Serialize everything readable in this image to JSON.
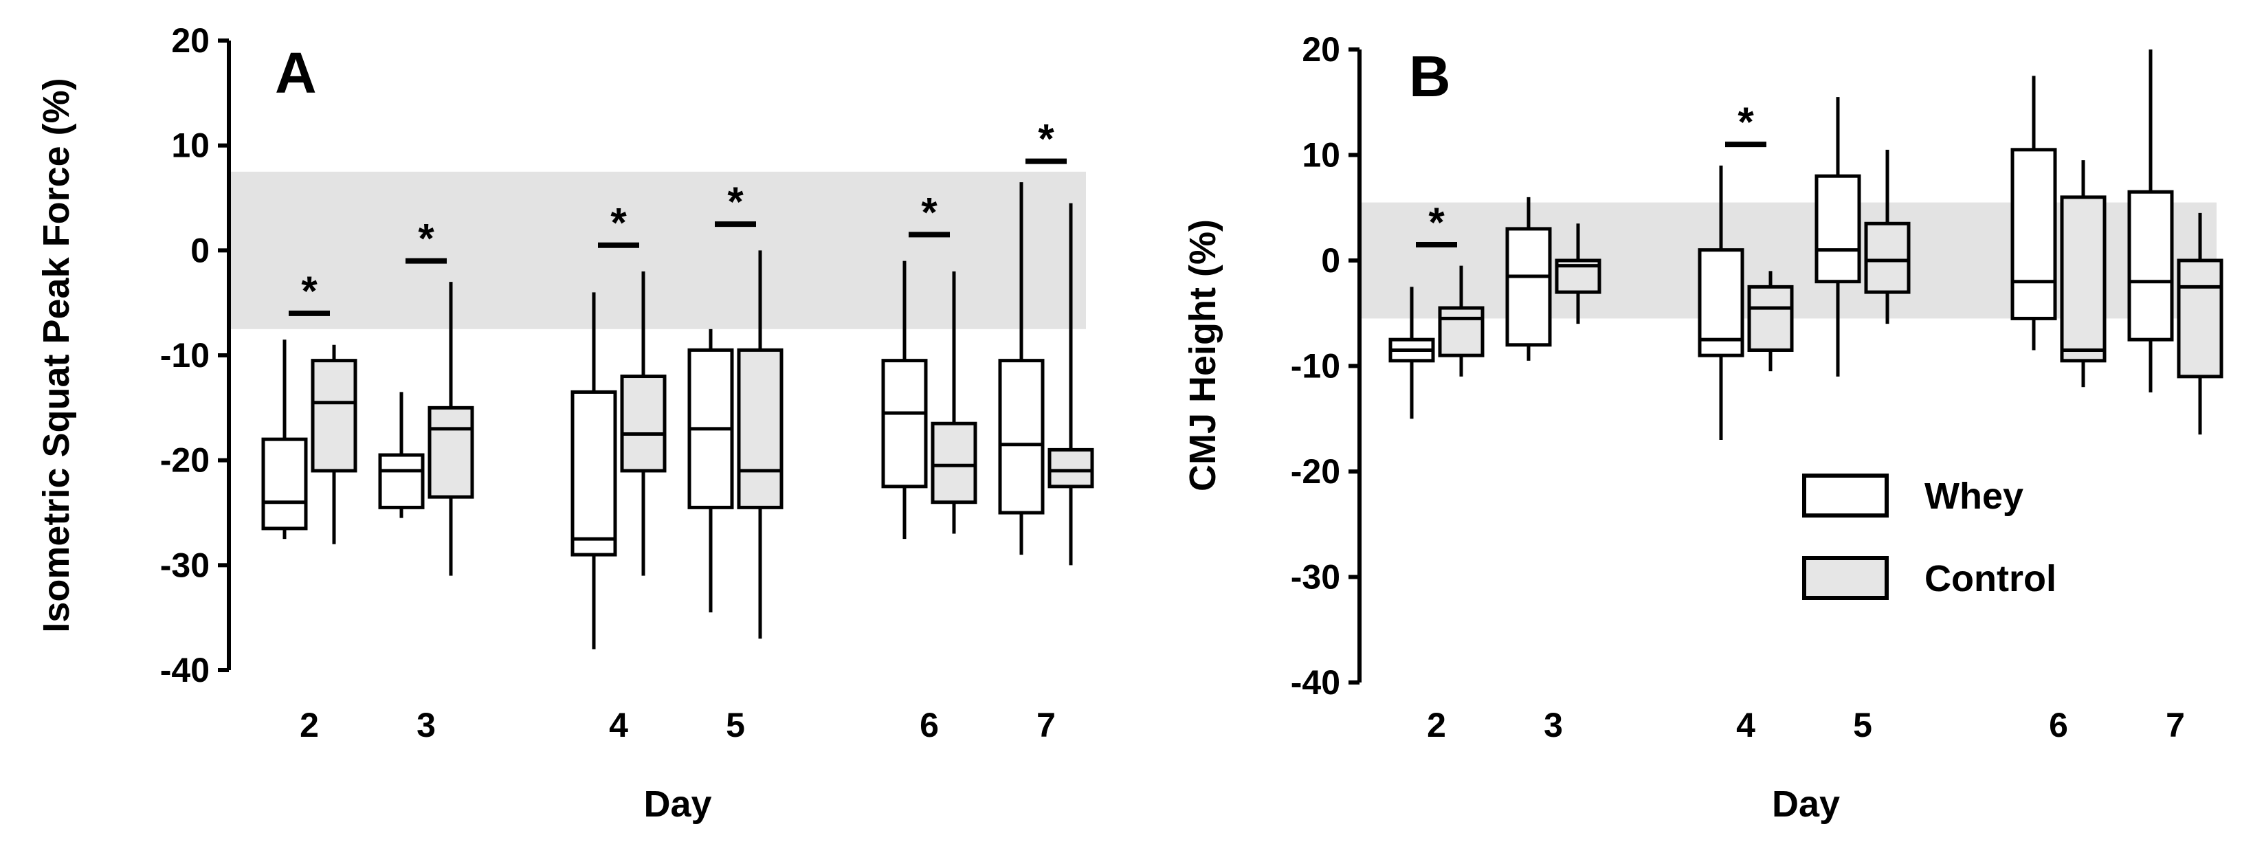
{
  "colors": {
    "whey": "#ffffff",
    "control": "#e6e6e6",
    "band": "#e3e3e3",
    "line": "#000000"
  },
  "legend": {
    "whey_label": "Whey",
    "control_label": "Control"
  },
  "chart_data": [
    {
      "type": "box",
      "panel_label": "A",
      "title": "",
      "xlabel": "Day",
      "ylabel": "Isometric Squat Peak Force  (%)",
      "ylim": [
        -40,
        20
      ],
      "yticks": [
        20,
        10,
        0,
        -10,
        -20,
        -30,
        -40
      ],
      "band": [
        -7.5,
        7.5
      ],
      "categories": [
        "2",
        "3",
        "4",
        "5",
        "6",
        "7"
      ],
      "series": [
        {
          "name": "Whey",
          "boxes": [
            {
              "min": -27.5,
              "q1": -26.5,
              "median": -24,
              "q3": -18,
              "max": -8.5
            },
            {
              "min": -25.5,
              "q1": -24.5,
              "median": -21,
              "q3": -19.5,
              "max": -13.5
            },
            {
              "min": -38,
              "q1": -29,
              "median": -27.5,
              "q3": -13.5,
              "max": -4
            },
            {
              "min": -34.5,
              "q1": -24.5,
              "median": -17,
              "q3": -9.5,
              "max": -7.5
            },
            {
              "min": -27.5,
              "q1": -22.5,
              "median": -15.5,
              "q3": -10.5,
              "max": -1
            },
            {
              "min": -29,
              "q1": -25,
              "median": -18.5,
              "q3": -10.5,
              "max": 6.5
            }
          ]
        },
        {
          "name": "Control",
          "boxes": [
            {
              "min": -28,
              "q1": -21,
              "median": -14.5,
              "q3": -10.5,
              "max": -9
            },
            {
              "min": -31,
              "q1": -23.5,
              "median": -17,
              "q3": -15,
              "max": -3
            },
            {
              "min": -31,
              "q1": -21,
              "median": -17.5,
              "q3": -12,
              "max": -2
            },
            {
              "min": -37,
              "q1": -24.5,
              "median": -21,
              "q3": -9.5,
              "max": 0
            },
            {
              "min": -27,
              "q1": -24,
              "median": -20.5,
              "q3": -16.5,
              "max": -2
            },
            {
              "min": -30,
              "q1": -22.5,
              "median": -21,
              "q3": -19,
              "max": 4.5
            }
          ]
        }
      ],
      "significance": [
        {
          "category": "2",
          "y": -6,
          "label": "*"
        },
        {
          "category": "3",
          "y": -1,
          "label": "*"
        },
        {
          "category": "4",
          "y": 0.5,
          "label": "*"
        },
        {
          "category": "5",
          "y": 2.5,
          "label": "*"
        },
        {
          "category": "6",
          "y": 1.5,
          "label": "*"
        },
        {
          "category": "7",
          "y": 8.5,
          "label": "*"
        }
      ]
    },
    {
      "type": "box",
      "panel_label": "B",
      "title": "",
      "xlabel": "Day",
      "ylabel": "CMJ Height (%)",
      "ylim": [
        -40,
        20
      ],
      "yticks": [
        20,
        10,
        0,
        -10,
        -20,
        -30,
        -40
      ],
      "band": [
        -5.5,
        5.5
      ],
      "categories": [
        "2",
        "3",
        "4",
        "5",
        "6",
        "7"
      ],
      "series": [
        {
          "name": "Whey",
          "boxes": [
            {
              "min": -15,
              "q1": -9.5,
              "median": -8.5,
              "q3": -7.5,
              "max": -2.5
            },
            {
              "min": -9.5,
              "q1": -8,
              "median": -1.5,
              "q3": 3,
              "max": 6
            },
            {
              "min": -17,
              "q1": -9,
              "median": -7.5,
              "q3": 1,
              "max": 9
            },
            {
              "min": -11,
              "q1": -2,
              "median": 1,
              "q3": 8,
              "max": 15.5
            },
            {
              "min": -8.5,
              "q1": -5.5,
              "median": -2,
              "q3": 10.5,
              "max": 17.5
            },
            {
              "min": -12.5,
              "q1": -7.5,
              "median": -2,
              "q3": 6.5,
              "max": 20
            }
          ]
        },
        {
          "name": "Control",
          "boxes": [
            {
              "min": -11,
              "q1": -9,
              "median": -5.5,
              "q3": -4.5,
              "max": -0.5
            },
            {
              "min": -6,
              "q1": -3,
              "median": -0.5,
              "q3": 0,
              "max": 3.5
            },
            {
              "min": -10.5,
              "q1": -8.5,
              "median": -4.5,
              "q3": -2.5,
              "max": -1
            },
            {
              "min": -6,
              "q1": -3,
              "median": 0,
              "q3": 3.5,
              "max": 10.5
            },
            {
              "min": -12,
              "q1": -9.5,
              "median": -8.5,
              "q3": 6,
              "max": 9.5
            },
            {
              "min": -16.5,
              "q1": -11,
              "median": -2.5,
              "q3": 0,
              "max": 4.5
            }
          ]
        }
      ],
      "significance": [
        {
          "category": "2",
          "y": 1.5,
          "label": "*"
        },
        {
          "category": "4",
          "y": 11,
          "label": "*"
        }
      ]
    }
  ]
}
